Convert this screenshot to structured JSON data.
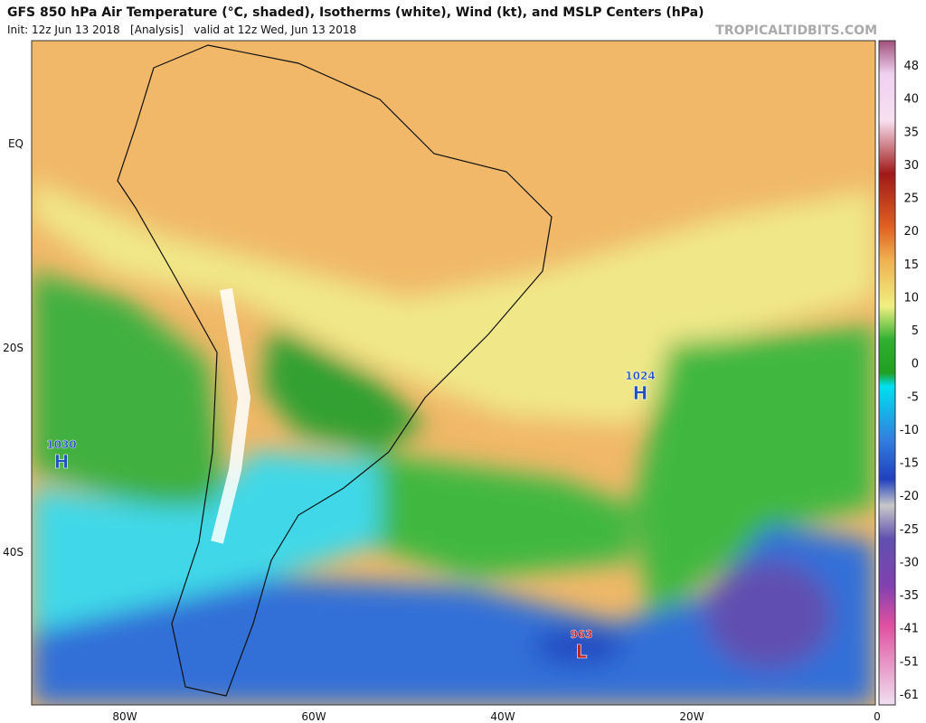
{
  "header": {
    "title": "GFS 850 hPa Air Temperature (°C, shaded), Isotherms (white), Wind (kt), and MSLP Centers (hPa)",
    "init": "Init: 12z Jun 13 2018   [Analysis]   valid at 12z Wed, Jun 13 2018",
    "watermark": "TROPICALTIDBITS.COM"
  },
  "axes": {
    "longitudes": [
      "80W",
      "60W",
      "40W",
      "20W",
      "0"
    ],
    "latitudes": [
      "EQ",
      "20S",
      "40S"
    ]
  },
  "colorbar": {
    "labels": [
      "48",
      "40",
      "35",
      "30",
      "25",
      "20",
      "15",
      "10",
      "5",
      "0",
      "-5",
      "-10",
      "-15",
      "-20",
      "-25",
      "-30",
      "-35",
      "-41",
      "-51",
      "-61"
    ]
  },
  "pressure_centers": [
    {
      "value": "1030",
      "letter": "H"
    },
    {
      "value": "1024",
      "letter": "H"
    },
    {
      "value": "963",
      "letter": "L"
    }
  ]
}
